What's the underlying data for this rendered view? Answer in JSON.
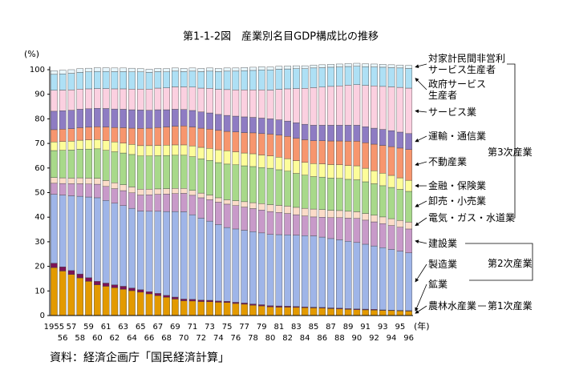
{
  "chart_data": {
    "type": "stacked_bar",
    "title": "第1-1-2図　産業別名目GDP構成比の推移",
    "y_unit": "(%)",
    "x_unit": "(年)",
    "source": "資料：経済企画庁「国民経済計算」",
    "categories": [
      "1955",
      "56",
      "57",
      "58",
      "59",
      "60",
      "61",
      "62",
      "63",
      "64",
      "65",
      "66",
      "67",
      "68",
      "69",
      "70",
      "71",
      "72",
      "73",
      "74",
      "75",
      "76",
      "77",
      "78",
      "79",
      "80",
      "81",
      "82",
      "83",
      "84",
      "85",
      "86",
      "87",
      "88",
      "89",
      "90",
      "91",
      "92",
      "93",
      "94",
      "95",
      "96"
    ],
    "ylim": [
      0,
      100
    ],
    "yticks": [
      0,
      10,
      20,
      30,
      40,
      50,
      60,
      70,
      80,
      90,
      100
    ],
    "series": [
      {
        "name": "農林水産業",
        "color": "#e39a00",
        "values": [
          19.5,
          18.1,
          16.7,
          15.3,
          13.9,
          12.5,
          11.9,
          11.3,
          10.7,
          10.1,
          9.5,
          8.8,
          8.1,
          7.4,
          6.7,
          6.0,
          5.9,
          5.7,
          5.6,
          5.4,
          5.3,
          4.9,
          4.6,
          4.2,
          3.9,
          3.5,
          3.4,
          3.4,
          3.3,
          3.2,
          3.1,
          3.0,
          2.8,
          2.7,
          2.5,
          2.4,
          2.3,
          2.2,
          2.1,
          2.0,
          1.9,
          1.8
        ]
      },
      {
        "name": "鉱業",
        "color": "#7b1458",
        "values": [
          1.8,
          1.7,
          1.6,
          1.6,
          1.5,
          1.4,
          1.3,
          1.2,
          1.2,
          1.1,
          1.0,
          0.9,
          0.9,
          0.8,
          0.8,
          0.7,
          0.7,
          0.6,
          0.6,
          0.5,
          0.5,
          0.5,
          0.5,
          0.5,
          0.5,
          0.5,
          0.5,
          0.4,
          0.4,
          0.3,
          0.3,
          0.3,
          0.3,
          0.3,
          0.3,
          0.3,
          0.3,
          0.3,
          0.2,
          0.2,
          0.2,
          0.2
        ]
      },
      {
        "name": "製造業",
        "color": "#9fb5e8",
        "values": [
          28,
          29.2,
          30.4,
          31.6,
          32.8,
          34,
          33.6,
          33.2,
          32.8,
          32.4,
          32,
          32.7,
          33.4,
          34.1,
          34.8,
          35.5,
          34.4,
          33.3,
          32.2,
          31.1,
          30,
          29.8,
          29.6,
          29.4,
          29.2,
          29,
          29,
          29,
          29,
          29,
          29,
          28.6,
          28.2,
          27.8,
          27.4,
          27,
          26.4,
          25.8,
          25.3,
          24.7,
          24.1,
          23.5
        ]
      },
      {
        "name": "建設業",
        "color": "#c89ac9",
        "values": [
          4.5,
          4.7,
          4.9,
          5.1,
          5.3,
          5.5,
          5.7,
          5.9,
          6.1,
          6.3,
          6.5,
          6.7,
          6.9,
          7.1,
          7.3,
          7.5,
          7.9,
          8.3,
          8.7,
          9.1,
          9.5,
          9.5,
          9.4,
          9.4,
          9.3,
          9.3,
          9.0,
          8.7,
          8.3,
          8.0,
          7.7,
          8.1,
          8.5,
          9.0,
          9.4,
          9.8,
          9.8,
          9.8,
          9.8,
          9.7,
          9.7,
          9.7
        ]
      },
      {
        "name": "電気・ガス・水道業",
        "color": "#fbdcc8",
        "values": [
          2.3,
          2.3,
          2.3,
          2.4,
          2.4,
          2.4,
          2.4,
          2.4,
          2.4,
          2.4,
          2.4,
          2.3,
          2.2,
          2.2,
          2.1,
          2.0,
          2.0,
          1.9,
          1.9,
          1.8,
          1.8,
          2.0,
          2.2,
          2.4,
          2.6,
          2.8,
          2.9,
          3.0,
          3.0,
          3.1,
          3.2,
          3.1,
          3.0,
          2.9,
          2.8,
          2.7,
          2.7,
          2.7,
          2.7,
          2.8,
          2.8,
          2.8
        ]
      },
      {
        "name": "卸売・小売業",
        "color": "#a8d98a",
        "values": [
          11,
          11.2,
          11.4,
          11.6,
          11.8,
          12,
          12.3,
          12.6,
          12.9,
          13.2,
          13.5,
          13.5,
          13.5,
          13.5,
          13.5,
          13.5,
          13.7,
          13.9,
          14.1,
          14.3,
          14.5,
          14.6,
          14.6,
          14.7,
          14.7,
          14.8,
          14.5,
          14.2,
          13.8,
          13.5,
          13.2,
          13.2,
          13.1,
          13.1,
          13.0,
          13.0,
          12.9,
          12.8,
          12.7,
          12.7,
          12.6,
          12.5
        ]
      },
      {
        "name": "金融・保険業",
        "color": "#fdfd9a",
        "values": [
          3.5,
          3.6,
          3.6,
          3.7,
          3.7,
          3.8,
          3.9,
          4.0,
          4.0,
          4.1,
          4.2,
          4.2,
          4.2,
          4.2,
          4.2,
          4.2,
          4.4,
          4.7,
          4.9,
          5.2,
          5.4,
          5.3,
          5.2,
          5.2,
          5.1,
          5.0,
          5.1,
          5.1,
          5.2,
          5.2,
          5.3,
          5.4,
          5.5,
          5.5,
          5.6,
          5.7,
          5.5,
          5.3,
          5.1,
          4.9,
          4.7,
          4.5
        ]
      },
      {
        "name": "不動産業",
        "color": "#f7966e",
        "values": [
          5.0,
          5.0,
          5.1,
          5.1,
          5.2,
          5.2,
          5.6,
          5.9,
          6.3,
          6.6,
          7.0,
          7.1,
          7.3,
          7.4,
          7.6,
          7.7,
          7.7,
          7.8,
          7.8,
          7.9,
          7.9,
          8.1,
          8.3,
          8.5,
          8.7,
          8.9,
          9.0,
          9.1,
          9.1,
          9.2,
          9.3,
          9.4,
          9.6,
          9.7,
          9.9,
          10.0,
          10.4,
          10.8,
          11.3,
          11.7,
          12.1,
          12.5
        ]
      },
      {
        "name": "運輸・通信業",
        "color": "#8e7cc3",
        "values": [
          7.5,
          7.5,
          7.5,
          7.5,
          7.5,
          7.5,
          7.5,
          7.5,
          7.5,
          7.5,
          7.5,
          7.3,
          7.2,
          7.0,
          6.9,
          6.7,
          6.7,
          6.6,
          6.6,
          6.5,
          6.5,
          6.4,
          6.4,
          6.3,
          6.3,
          6.2,
          6.2,
          6.2,
          6.3,
          6.3,
          6.3,
          6.3,
          6.4,
          6.4,
          6.5,
          6.5,
          6.5,
          6.5,
          6.5,
          6.5,
          6.5,
          6.5
        ]
      },
      {
        "name": "サービス業",
        "color": "#fbd0e0",
        "values": [
          8.5,
          8.4,
          8.3,
          8.2,
          8.1,
          8.0,
          8.1,
          8.2,
          8.3,
          8.4,
          8.5,
          8.6,
          8.8,
          8.9,
          9.1,
          9.2,
          9.5,
          9.7,
          10.0,
          10.2,
          10.5,
          10.7,
          11.0,
          11.2,
          11.5,
          11.7,
          12.4,
          13.1,
          13.9,
          14.6,
          15.3,
          15.5,
          15.8,
          16.0,
          16.3,
          16.5,
          16.8,
          17.2,
          17.5,
          17.8,
          18.2,
          18.5
        ]
      },
      {
        "name": "政府サービス\n生産者",
        "color": "#aee0f5",
        "values": [
          6.5,
          6.6,
          6.7,
          6.8,
          6.9,
          7.0,
          7.0,
          7.0,
          7.0,
          7.0,
          7.0,
          6.8,
          6.7,
          6.5,
          6.4,
          6.2,
          6.5,
          6.7,
          7.0,
          7.2,
          7.5,
          7.6,
          7.8,
          7.9,
          8.1,
          8.2,
          8.2,
          8.1,
          8.1,
          8.0,
          8.0,
          7.9,
          7.8,
          7.7,
          7.6,
          7.5,
          7.6,
          7.7,
          7.8,
          7.8,
          7.9,
          8.0
        ]
      },
      {
        "name": "対家計民間非営利\nサービス生産者",
        "color": "#e8f6fc",
        "values": [
          1.5,
          1.5,
          1.5,
          1.5,
          1.5,
          1.5,
          1.5,
          1.5,
          1.5,
          1.5,
          1.3,
          1.3,
          1.3,
          1.3,
          1.3,
          1.3,
          1.3,
          1.3,
          1.3,
          1.3,
          1.3,
          1.3,
          1.3,
          1.3,
          1.3,
          1.2,
          1.2,
          1.2,
          1.2,
          1.2,
          1.2,
          1.2,
          1.2,
          1.2,
          1.2,
          1.2,
          1.2,
          1.2,
          1.2,
          1.2,
          1.2,
          1.2
        ]
      }
    ],
    "groups": [
      {
        "label": "第3次産業"
      },
      {
        "label": "第2次産業"
      },
      {
        "label": "第1次産業"
      }
    ]
  }
}
